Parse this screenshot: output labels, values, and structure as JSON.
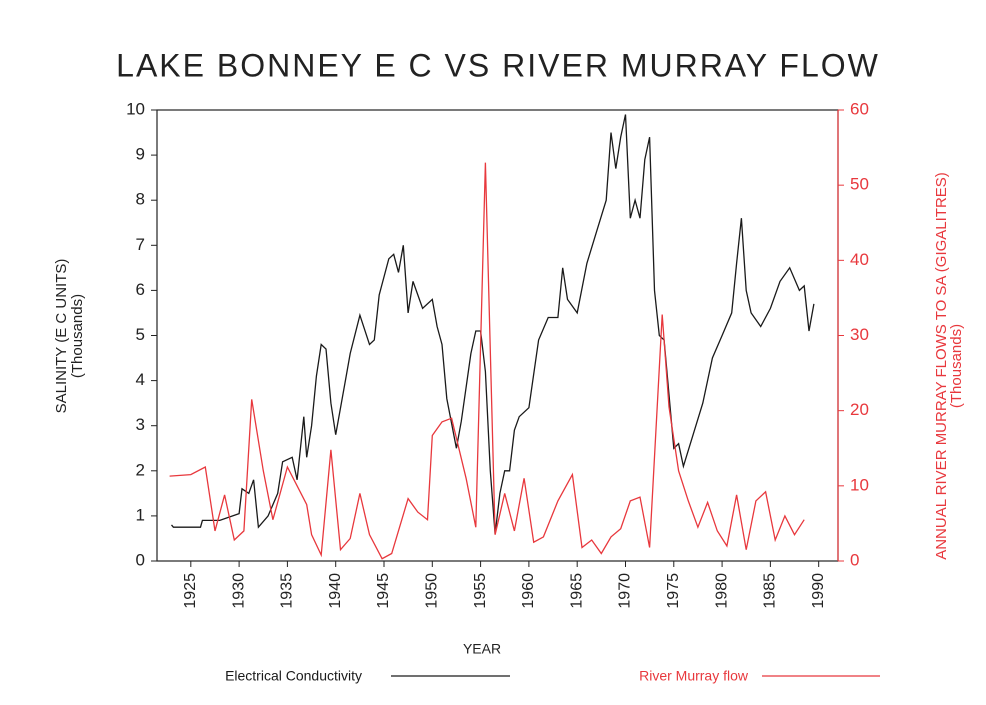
{
  "chart_data": {
    "type": "line",
    "title": "LAKE BONNEY E C  VS RIVER MURRAY FLOW",
    "xlabel": "YEAR",
    "ylabel": [
      "SALINITY (E C UNITS)",
      "(Thousands)"
    ],
    "y2label": [
      "ANNUAL RIVER MURRAY FLOWS TO SA (GIGALITRES)",
      "(Thousands)"
    ],
    "xlim": [
      1921.5,
      1992
    ],
    "xticks": [
      1925,
      1930,
      1935,
      1940,
      1945,
      1950,
      1955,
      1960,
      1965,
      1970,
      1975,
      1980,
      1985,
      1990
    ],
    "ylim": [
      0,
      10
    ],
    "yticks": [
      0,
      1,
      2,
      3,
      4,
      5,
      6,
      7,
      8,
      9,
      10
    ],
    "y2lim": [
      0,
      60
    ],
    "y2ticks": [
      0,
      10,
      20,
      30,
      40,
      50,
      60
    ],
    "series": [
      {
        "name": "Electrical Conductivity",
        "color": "#1a1a1a",
        "x": [
          1923,
          1923.2,
          1926,
          1926.2,
          1928,
          1930,
          1930.3,
          1931,
          1931.5,
          1932,
          1933,
          1934,
          1934.5,
          1935.5,
          1936,
          1936.7,
          1937,
          1937.5,
          1938,
          1938.5,
          1939,
          1939.5,
          1940,
          1941,
          1941.5,
          1942.5,
          1943.5,
          1944,
          1944.5,
          1945.5,
          1946,
          1946.5,
          1947,
          1947.5,
          1948,
          1949,
          1950,
          1950.5,
          1951,
          1951.5,
          1952.5,
          1953,
          1954,
          1954.5,
          1955,
          1955.5,
          1956,
          1956.5,
          1957,
          1957.5,
          1958,
          1958.5,
          1959,
          1960,
          1961,
          1962,
          1963,
          1963.5,
          1964,
          1965,
          1966,
          1967,
          1968,
          1968.5,
          1969,
          1969.5,
          1970,
          1970.5,
          1971,
          1971.5,
          1972,
          1972.5,
          1973,
          1973.5,
          1974,
          1975,
          1975.5,
          1976,
          1977,
          1978,
          1979,
          1980,
          1981,
          1981.5,
          1982,
          1982.5,
          1983,
          1984,
          1985,
          1986,
          1987,
          1988,
          1988.5,
          1989,
          1989.5
        ],
        "values": [
          0.8,
          0.75,
          0.75,
          0.9,
          0.9,
          1.05,
          1.6,
          1.5,
          1.8,
          0.75,
          1.0,
          1.5,
          2.2,
          2.3,
          1.8,
          3.2,
          2.3,
          3.0,
          4.1,
          4.8,
          4.7,
          3.5,
          2.8,
          4.0,
          4.6,
          5.45,
          4.8,
          4.9,
          5.9,
          6.7,
          6.8,
          6.4,
          7.0,
          5.5,
          6.2,
          5.6,
          5.8,
          5.2,
          4.8,
          3.6,
          2.5,
          3.1,
          4.6,
          5.1,
          5.1,
          4.2,
          2.0,
          0.6,
          1.5,
          2.0,
          2.0,
          2.9,
          3.2,
          3.4,
          4.9,
          5.4,
          5.4,
          6.5,
          5.8,
          5.5,
          6.6,
          7.3,
          8.0,
          9.5,
          8.7,
          9.4,
          9.9,
          7.6,
          8.0,
          7.6,
          8.9,
          9.4,
          6.0,
          5.0,
          4.9,
          2.5,
          2.6,
          2.1,
          2.8,
          3.5,
          4.5,
          5.0,
          5.5,
          6.6,
          7.6,
          6.0,
          5.5,
          5.2,
          5.6,
          6.2,
          6.5,
          6.0,
          6.1,
          5.1,
          5.7
        ]
      },
      {
        "name": "River Murray flow",
        "color": "#e8383d",
        "axis": "y2",
        "x": [
          1922.8,
          1925,
          1926.5,
          1927.5,
          1928.5,
          1929.5,
          1930.5,
          1931.3,
          1932.5,
          1933.5,
          1935,
          1936,
          1937,
          1937.5,
          1938.5,
          1939.5,
          1940.5,
          1941.5,
          1942.5,
          1943.5,
          1944.8,
          1945.8,
          1947.5,
          1948.5,
          1949.5,
          1950,
          1951,
          1952,
          1953.5,
          1954.5,
          1955.5,
          1956.5,
          1957.5,
          1958.5,
          1959.5,
          1960.5,
          1961.5,
          1963,
          1964.5,
          1965.5,
          1966.5,
          1967.5,
          1968.5,
          1969.5,
          1970.5,
          1971.5,
          1972.5,
          1973.8,
          1974.5,
          1975.5,
          1976.5,
          1977.5,
          1978.5,
          1979.5,
          1980.5,
          1981.5,
          1982.5,
          1983.5,
          1984.5,
          1985.5,
          1986.5,
          1987.5,
          1988.5
        ],
        "values": [
          11.3,
          11.5,
          12.5,
          4.0,
          8.8,
          2.8,
          4.0,
          21.5,
          12.0,
          5.5,
          12.5,
          10.0,
          7.5,
          3.5,
          0.8,
          14.8,
          1.5,
          3.0,
          9.0,
          3.5,
          0.3,
          1.0,
          8.3,
          6.5,
          5.5,
          16.7,
          18.5,
          19.0,
          11.0,
          4.5,
          53,
          3.5,
          9.0,
          4.0,
          11.0,
          2.5,
          3.2,
          8.0,
          11.5,
          1.8,
          2.8,
          1.0,
          3.2,
          4.3,
          8.0,
          8.5,
          1.8,
          32.8,
          20.5,
          12.0,
          8.0,
          4.5,
          7.8,
          4.0,
          2.0,
          8.8,
          1.5,
          8.0,
          9.2,
          2.8,
          6.0,
          3.5,
          5.5
        ]
      }
    ]
  }
}
